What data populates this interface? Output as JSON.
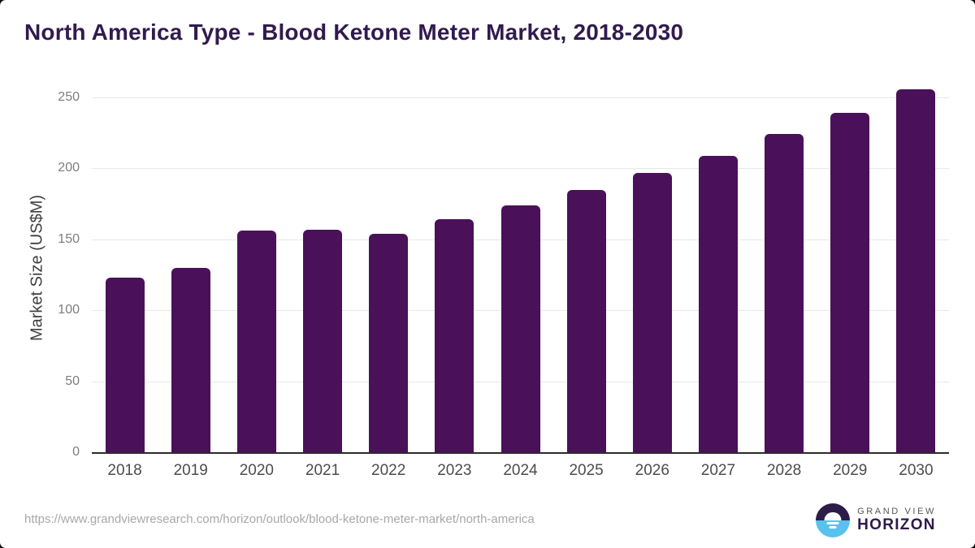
{
  "header": {
    "title": "North America Type - Blood Ketone Meter Market, 2018-2030"
  },
  "chart_data": {
    "type": "bar",
    "title": "North America Type - Blood Ketone Meter Market, 2018-2030",
    "categories": [
      "2018",
      "2019",
      "2020",
      "2021",
      "2022",
      "2023",
      "2024",
      "2025",
      "2026",
      "2027",
      "2028",
      "2029",
      "2030"
    ],
    "values": [
      123,
      130,
      156,
      157,
      154,
      164,
      174,
      185,
      197,
      209,
      224,
      239,
      256
    ],
    "xlabel": "",
    "ylabel": "Market Size (US$M)",
    "ylim": [
      0,
      250
    ],
    "yticks": [
      0,
      50,
      100,
      150,
      200,
      250
    ],
    "grid": true,
    "legend": "none",
    "bar_color": "#4a1059",
    "gridline_color": "#e8e8e8",
    "axis_line_color": "#2b2b2b"
  },
  "footer": {
    "source_url": "https://www.grandviewresearch.com/horizon/outlook/blood-ketone-meter-market/north-america",
    "logo": {
      "line1": "GRAND VIEW",
      "line2": "HORIZON",
      "icon": "sun-over-horizon-icon",
      "navy": "#2d1b4a",
      "blue": "#55c3ee"
    }
  },
  "colors": {
    "title": "#321a4e",
    "x_labels": "#4c4c4c",
    "y_labels": "#7d7d7d",
    "y_axis_title": "#3f3f3f",
    "url_text": "#a8a8a8",
    "background": "#ffffff"
  }
}
